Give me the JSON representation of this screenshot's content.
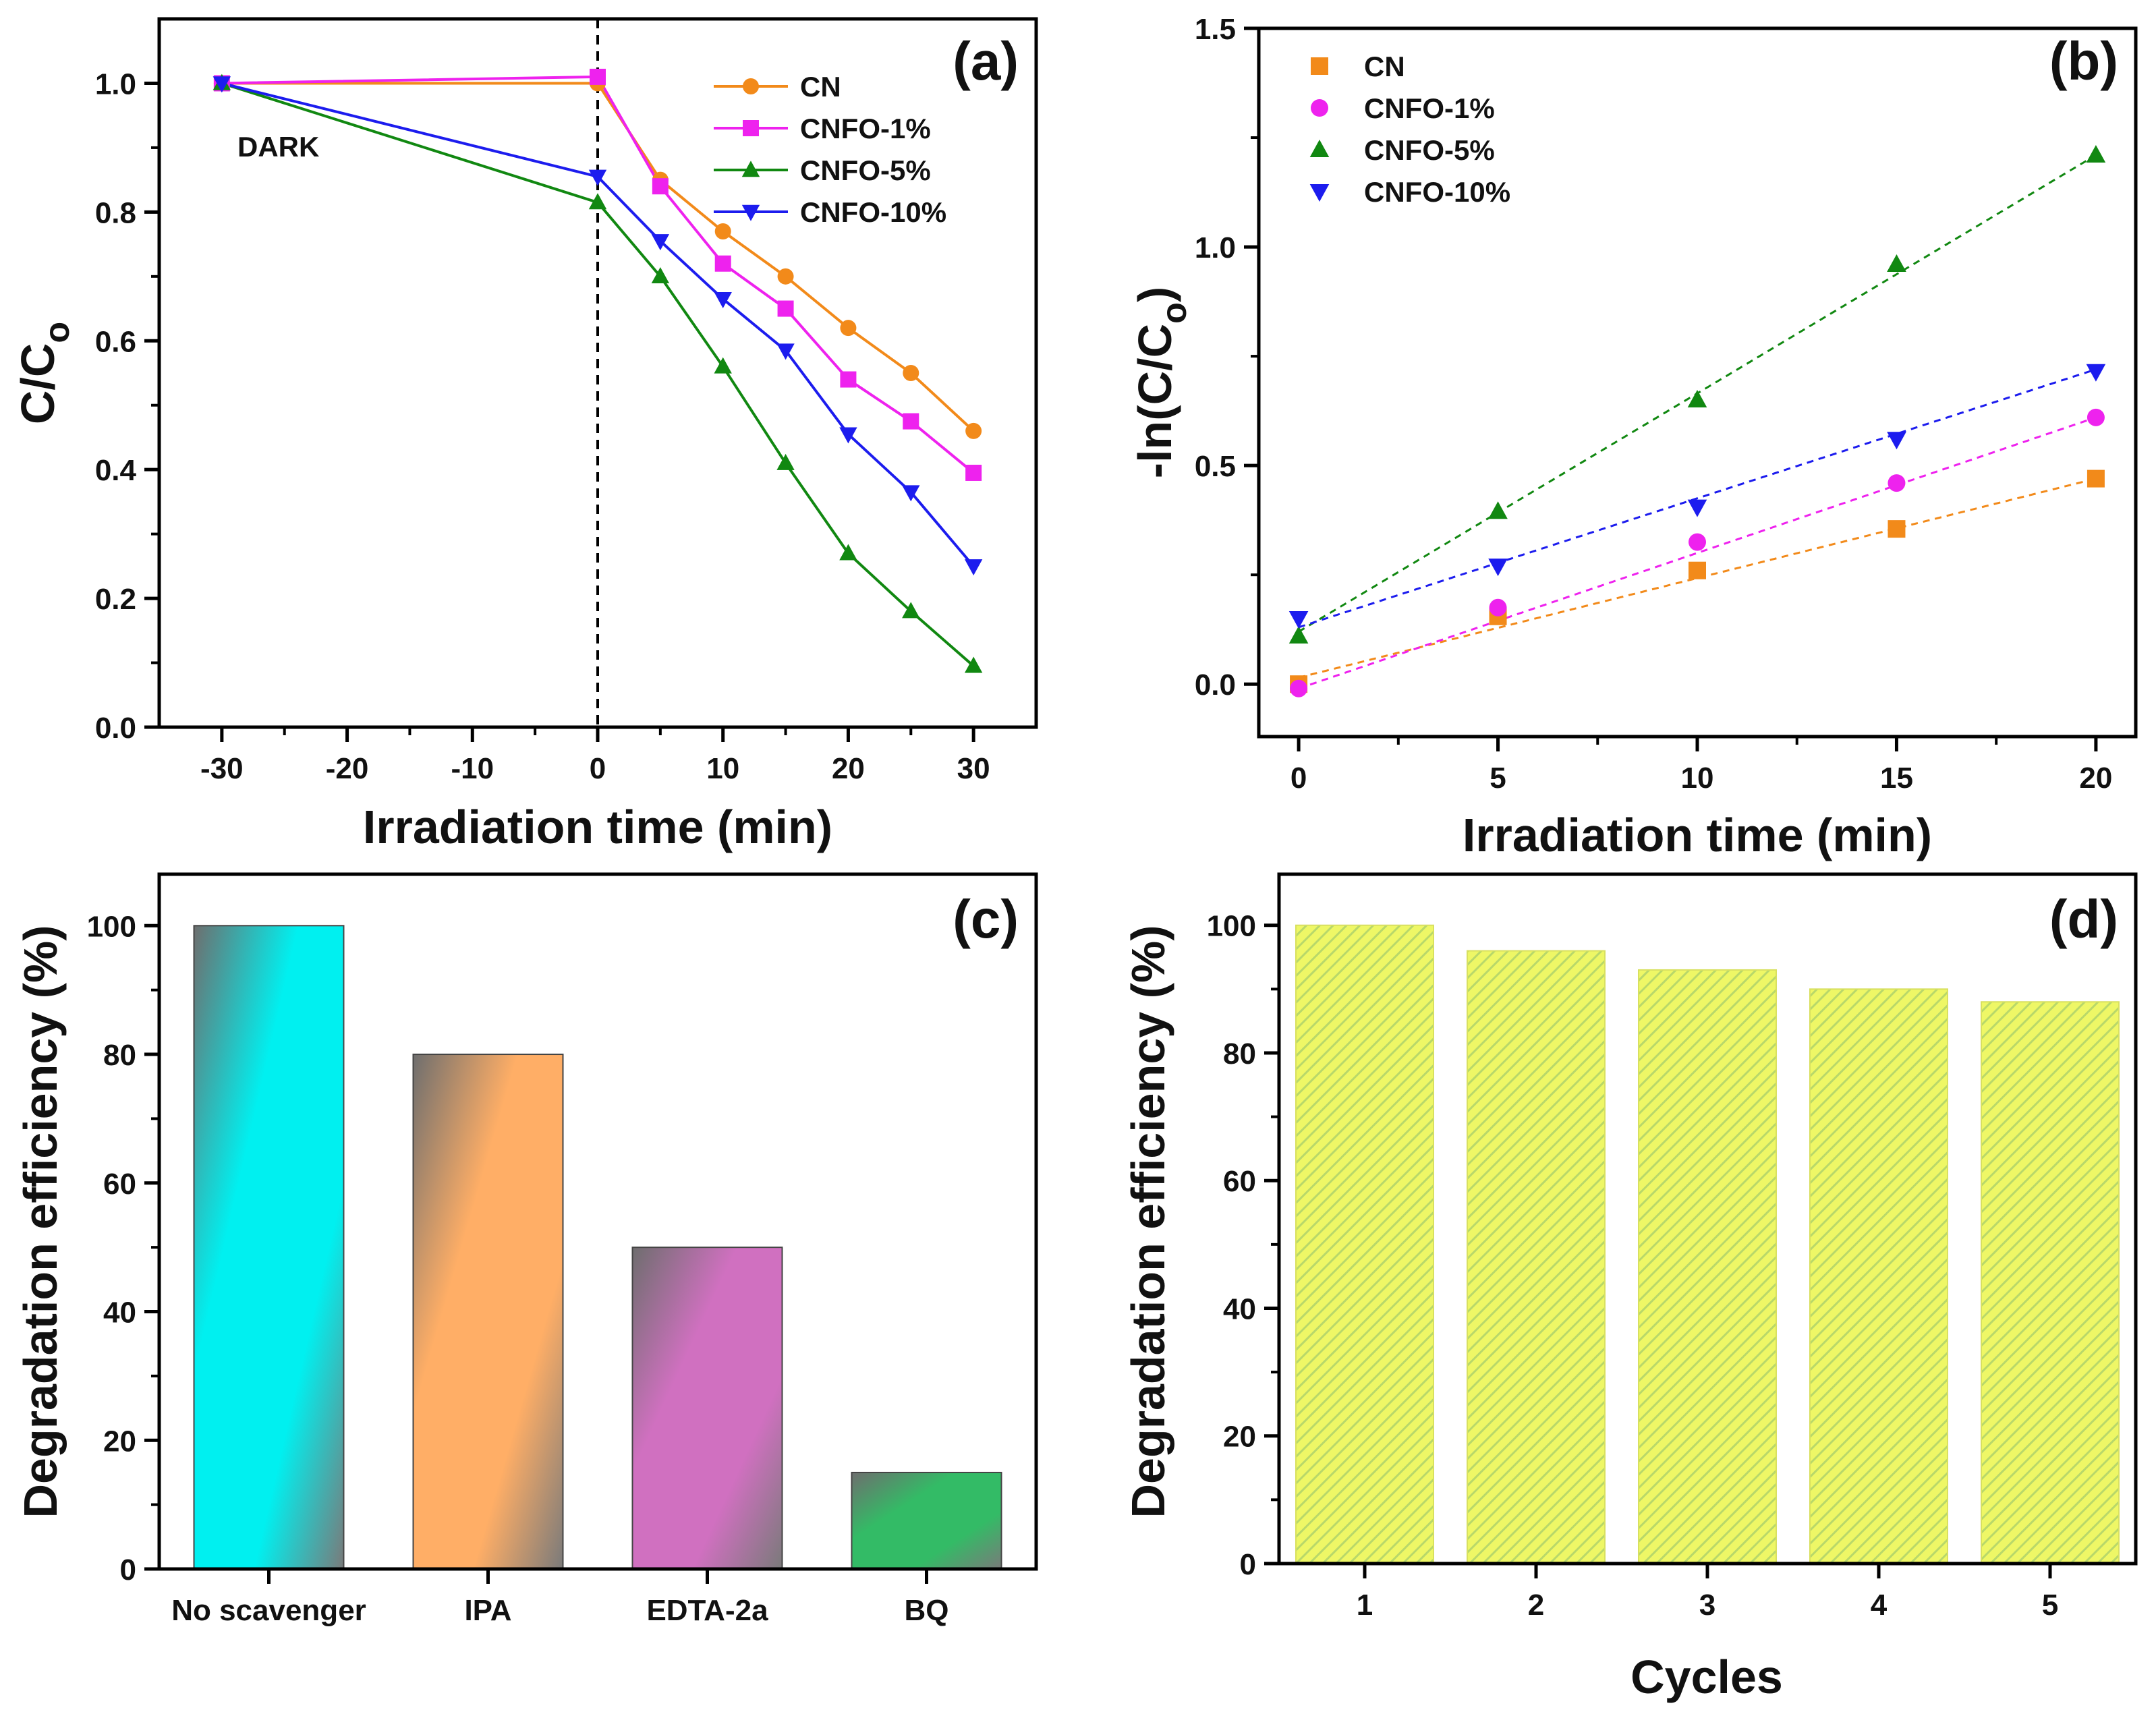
{
  "chart_data": [
    {
      "panel": "(a)",
      "type": "line",
      "xlabel": "Irradiation time (min)",
      "ylabel_main": "C/C",
      "ylabel_sub": "o",
      "xlim": [
        -35,
        35
      ],
      "ylim": [
        0.0,
        1.1
      ],
      "xticks": [
        -30,
        -20,
        -10,
        0,
        10,
        20,
        30
      ],
      "yticks": [
        0.0,
        0.2,
        0.4,
        0.6,
        0.8,
        1.0
      ],
      "annotation": "DARK",
      "vline_x": 0,
      "legend_position": "top-right",
      "series": [
        {
          "name": "CN",
          "marker": "circle",
          "color": "#f28a1a",
          "x": [
            -30,
            0,
            5,
            10,
            15,
            20,
            25,
            30
          ],
          "y": [
            1.0,
            1.0,
            0.85,
            0.77,
            0.7,
            0.62,
            0.55,
            0.46
          ]
        },
        {
          "name": "CNFO-1%",
          "marker": "square",
          "color": "#ee22ee",
          "x": [
            -30,
            0,
            5,
            10,
            15,
            20,
            25,
            30
          ],
          "y": [
            1.0,
            1.01,
            0.84,
            0.72,
            0.65,
            0.54,
            0.475,
            0.395
          ]
        },
        {
          "name": "CNFO-5%",
          "marker": "triangle-up",
          "color": "#118811",
          "x": [
            -30,
            0,
            5,
            10,
            15,
            20,
            25,
            30
          ],
          "y": [
            1.0,
            0.815,
            0.7,
            0.56,
            0.41,
            0.27,
            0.18,
            0.095
          ]
        },
        {
          "name": "CNFO-10%",
          "marker": "triangle-down",
          "color": "#1c1cee",
          "x": [
            -30,
            0,
            5,
            10,
            15,
            20,
            25,
            30
          ],
          "y": [
            1.0,
            0.855,
            0.755,
            0.665,
            0.585,
            0.455,
            0.365,
            0.25
          ]
        }
      ]
    },
    {
      "panel": "(b)",
      "type": "scatter",
      "xlabel": "Irradiation time (min)",
      "ylabel_main": "-ln(C/C",
      "ylabel_sub": "o",
      "ylabel_end": ")",
      "xlim": [
        -1,
        21
      ],
      "ylim": [
        -0.12,
        1.5
      ],
      "xticks": [
        0,
        5,
        10,
        15,
        20
      ],
      "yticks": [
        0.0,
        0.5,
        1.0,
        1.5
      ],
      "legend_position": "top-left",
      "fit_lines": "dashed linear fits",
      "series": [
        {
          "name": "CN",
          "marker": "square",
          "color": "#f28a1a",
          "x": [
            0,
            5,
            10,
            15,
            20
          ],
          "y": [
            0.0,
            0.155,
            0.26,
            0.355,
            0.47
          ],
          "fit": [
            0.015,
            0.47
          ]
        },
        {
          "name": "CNFO-1%",
          "marker": "circle",
          "color": "#ee22ee",
          "x": [
            0,
            5,
            10,
            15,
            20
          ],
          "y": [
            -0.01,
            0.175,
            0.325,
            0.46,
            0.61
          ],
          "fit": [
            -0.01,
            0.61
          ]
        },
        {
          "name": "CNFO-5%",
          "marker": "triangle-up",
          "color": "#118811",
          "x": [
            0,
            5,
            10,
            15,
            20
          ],
          "y": [
            0.11,
            0.395,
            0.65,
            0.96,
            1.21
          ],
          "fit": [
            0.12,
            1.21
          ]
        },
        {
          "name": "CNFO-10%",
          "marker": "triangle-down",
          "color": "#1c1cee",
          "x": [
            0,
            5,
            10,
            15,
            20
          ],
          "y": [
            0.15,
            0.27,
            0.405,
            0.56,
            0.715
          ],
          "fit": [
            0.13,
            0.72
          ]
        }
      ]
    },
    {
      "panel": "(c)",
      "type": "bar",
      "ylabel": "Degradation efficiency (%)",
      "ylim": [
        0,
        108
      ],
      "yticks": [
        0,
        20,
        40,
        60,
        80,
        100
      ],
      "categories": [
        "No scavenger",
        "IPA",
        "EDTA-2a",
        "BQ"
      ],
      "values": [
        100,
        80,
        50,
        15
      ],
      "colors": [
        "#00f0f0",
        "#ffae66",
        "#d070c0",
        "#33bb66"
      ]
    },
    {
      "panel": "(d)",
      "type": "bar",
      "xlabel": "Cycles",
      "ylabel": "Degradation efficiency (%)",
      "ylim": [
        0,
        108
      ],
      "yticks": [
        0,
        20,
        40,
        60,
        80,
        100
      ],
      "categories": [
        "1",
        "2",
        "3",
        "4",
        "5"
      ],
      "values": [
        100,
        96,
        93,
        90,
        88
      ],
      "colors": [
        "#e8f560"
      ]
    }
  ]
}
